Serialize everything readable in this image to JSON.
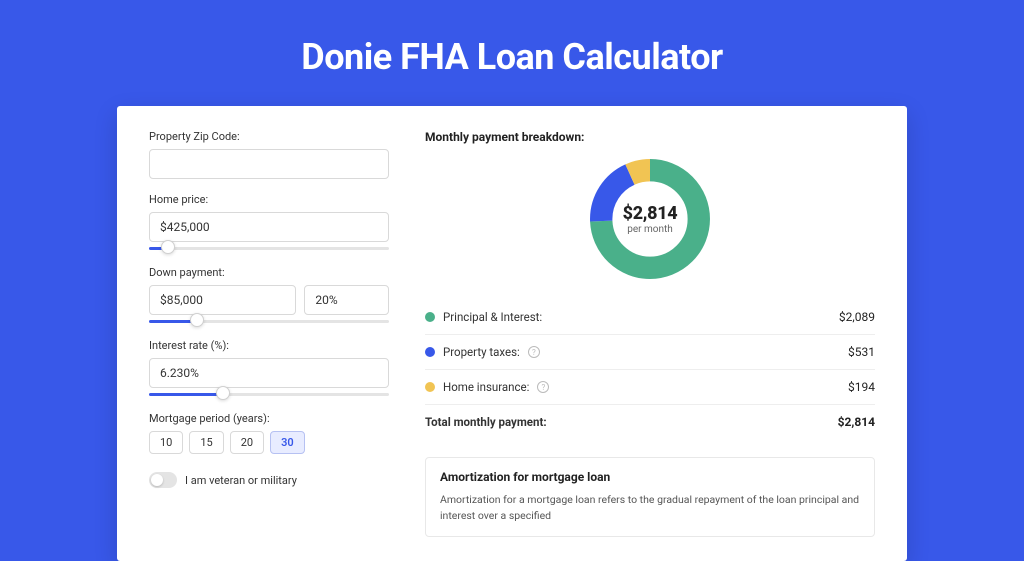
{
  "page_title": "Donie FHA Loan Calculator",
  "colors": {
    "page_bg": "#3858e9",
    "card_bg": "#ffffff",
    "slider_fill": "#3858e9",
    "slider_empty": "#e4e4e4"
  },
  "form": {
    "zip": {
      "label": "Property Zip Code:",
      "value": ""
    },
    "price": {
      "label": "Home price:",
      "value": "$425,000",
      "slider_pct": 8
    },
    "down": {
      "label": "Down payment:",
      "amount": "$85,000",
      "pct": "20%",
      "slider_pct": 20
    },
    "rate": {
      "label": "Interest rate (%):",
      "value": "6.230%",
      "slider_pct": 31
    },
    "period": {
      "label": "Mortgage period (years):",
      "options": [
        "10",
        "15",
        "20",
        "30"
      ],
      "selected": "30"
    },
    "veteran": {
      "label": "I am veteran or military",
      "checked": false
    }
  },
  "breakdown": {
    "title": "Monthly payment breakdown:",
    "donut": {
      "amount": "$2,814",
      "sub": "per month",
      "radius": 48,
      "stroke": 22,
      "segments": [
        {
          "name": "principal_interest",
          "color": "#4ab08a",
          "pct": 74.2
        },
        {
          "name": "property_taxes",
          "color": "#3858e9",
          "pct": 18.9
        },
        {
          "name": "home_insurance",
          "color": "#f1c453",
          "pct": 6.9
        }
      ]
    },
    "lines": [
      {
        "label": "Principal & Interest:",
        "color": "#4ab08a",
        "value": "$2,089",
        "info": false
      },
      {
        "label": "Property taxes:",
        "color": "#3858e9",
        "value": "$531",
        "info": true
      },
      {
        "label": "Home insurance:",
        "color": "#f1c453",
        "value": "$194",
        "info": true
      }
    ],
    "total": {
      "label": "Total monthly payment:",
      "value": "$2,814"
    }
  },
  "amortization": {
    "title": "Amortization for mortgage loan",
    "text": "Amortization for a mortgage loan refers to the gradual repayment of the loan principal and interest over a specified"
  }
}
